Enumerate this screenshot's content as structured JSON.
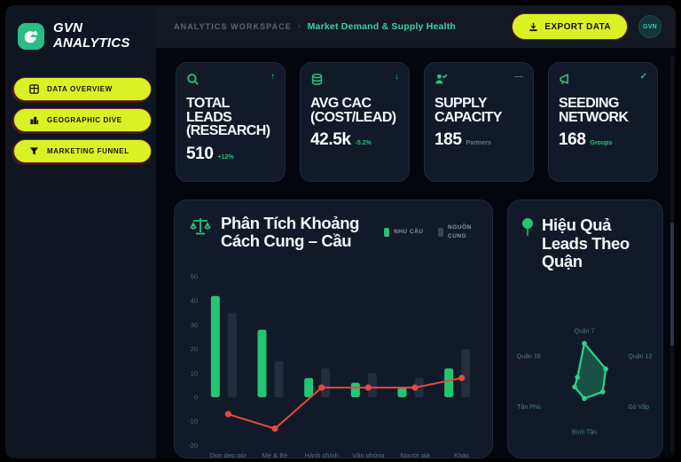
{
  "sidebar": {
    "brand_line1": "GVN",
    "brand_line2": "ANALYTICS",
    "items": [
      {
        "label": "DATA OVERVIEW",
        "icon": "grid-icon",
        "active": true
      },
      {
        "label": "GEOGRAPHIC DIVE",
        "icon": "buildings-icon",
        "active": false
      },
      {
        "label": "MARKETING FUNNEL",
        "icon": "funnel-icon",
        "active": false
      }
    ]
  },
  "topbar": {
    "breadcrumb_root": "ANALYTICS WORKSPACE",
    "breadcrumb_sep": "›",
    "breadcrumb_current": "Market Demand & Supply Health",
    "export_label": "EXPORT DATA",
    "avatar_initials": "GVN"
  },
  "kpis": [
    {
      "title": "TOTAL LEADS (RESEARCH)",
      "value": "510",
      "sub": "+12%",
      "trend": "↑",
      "icon": "search-icon"
    },
    {
      "title": "AVG CAC (COST/LEAD)",
      "value": "42.5k",
      "sub": "-5.2%",
      "trend": "↓",
      "icon": "coins-icon"
    },
    {
      "title": "SUPPLY CAPACITY",
      "value": "185",
      "sub": "Partners",
      "trend": "—",
      "icon": "person-check-icon"
    },
    {
      "title": "SEEDING NETWORK",
      "value": "168",
      "sub": "Groups",
      "trend": "✓",
      "icon": "megaphone-icon"
    }
  ],
  "panels": {
    "gap_chart": {
      "title": "Phân Tích Khoảng Cách Cung – Cầu",
      "legend": [
        "NHU CẦU",
        "NGUỒN CUNG"
      ]
    },
    "radar": {
      "title": "Hiệu Quả Leads Theo Quận"
    }
  },
  "chart_data": [
    {
      "type": "bar",
      "title": "Phân Tích Khoảng Cách Cung – Cầu",
      "categories": [
        "Dọn dẹp giờ",
        "Mẹ & Bé",
        "Hành chính",
        "Văn phòng",
        "Người già",
        "Khác"
      ],
      "series": [
        {
          "name": "NHU CẦU",
          "type": "bar",
          "color": "#25c474",
          "values": [
            42,
            28,
            8,
            6,
            4,
            12
          ]
        },
        {
          "name": "NGUỒN CUNG",
          "type": "bar",
          "color": "#242d3f",
          "values": [
            35,
            15,
            12,
            10,
            8,
            20
          ]
        },
        {
          "name": "GAP",
          "type": "line",
          "color": "#e8483d",
          "values": [
            -7,
            -13,
            4,
            4,
            4,
            8
          ]
        }
      ],
      "ylim": [
        -20,
        50
      ],
      "yticks": [
        -20,
        -10,
        0,
        10,
        20,
        30,
        40,
        50
      ],
      "grid": false,
      "legend_position": "top-right"
    },
    {
      "type": "radar",
      "title": "Hiệu Quả Leads Theo Quận",
      "axes": [
        "Quận 7",
        "Quận 12",
        "Gò Vấp",
        "Bình Tân",
        "Tân Phú",
        "Quận 10"
      ],
      "values": [
        95,
        62,
        53,
        43,
        28,
        20
      ],
      "max": 100,
      "stroke": "#2bd488",
      "fill": "rgba(32,170,110,0.38)"
    }
  ],
  "colors": {
    "accent_green": "#25c474",
    "accent_chartreuse": "#d9f226",
    "breadcrumb_teal": "#3bd3a2",
    "line_red": "#e8483d",
    "card_bg": "#121a29"
  }
}
